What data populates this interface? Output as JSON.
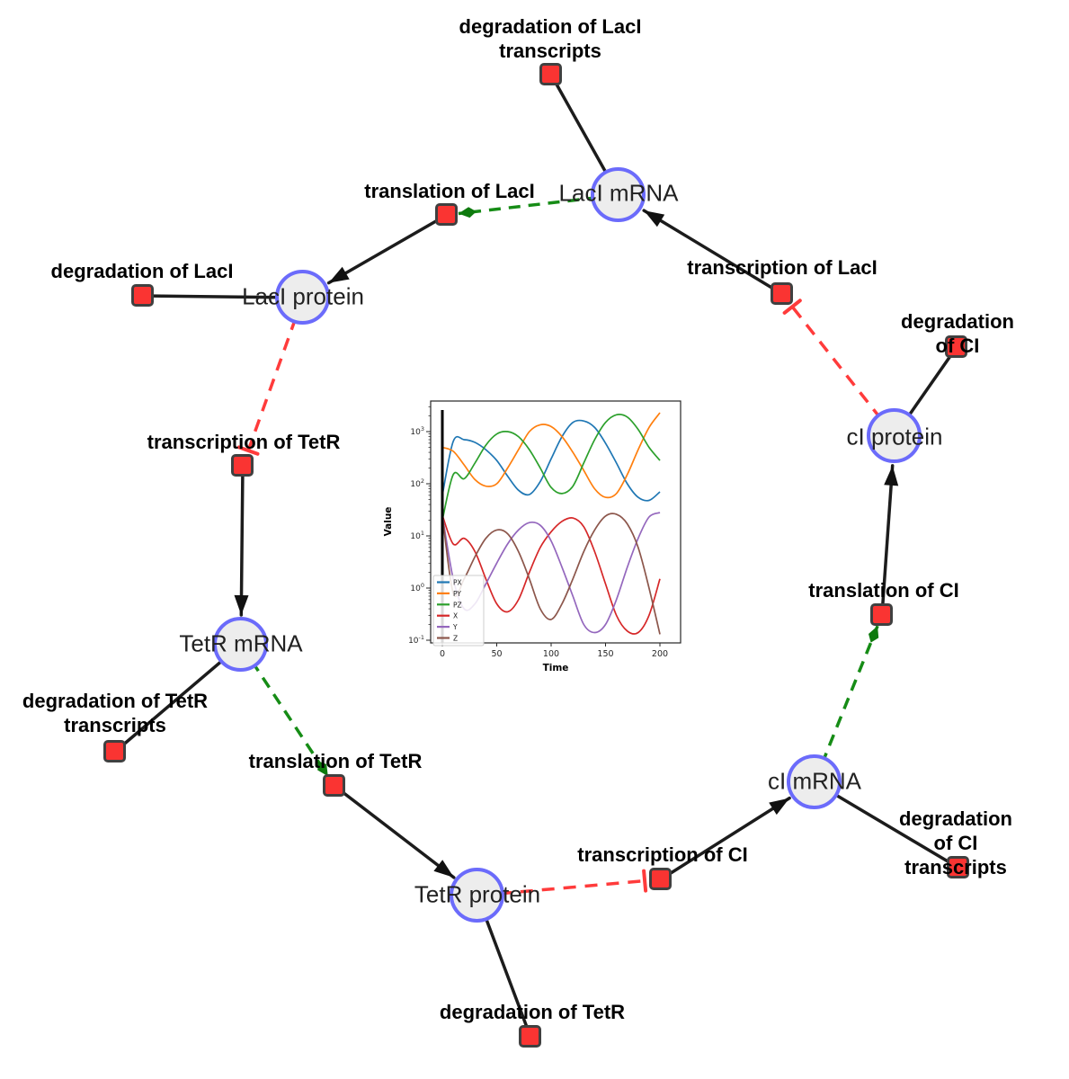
{
  "network": {
    "species": [
      {
        "id": "laci-mrna",
        "label": "LacI mRNA"
      },
      {
        "id": "laci-protein",
        "label": "LacI protein"
      },
      {
        "id": "tetr-mrna",
        "label": "TetR mRNA"
      },
      {
        "id": "tetr-protein",
        "label": "TetR protein"
      },
      {
        "id": "ci-mrna",
        "label": "cI mRNA"
      },
      {
        "id": "ci-protein",
        "label": "cI protein"
      }
    ],
    "reactions": [
      {
        "id": "deg-laci-transcripts",
        "label": "degradation of LacI\ntranscripts"
      },
      {
        "id": "translation-laci",
        "label": "translation of LacI"
      },
      {
        "id": "transcription-laci",
        "label": "transcription of LacI"
      },
      {
        "id": "deg-laci",
        "label": "degradation of LacI"
      },
      {
        "id": "deg-ci",
        "label": "degradation of CI"
      },
      {
        "id": "transcription-tetr",
        "label": "transcription of TetR"
      },
      {
        "id": "deg-tetr-transcripts",
        "label": "degradation of TetR\ntranscripts"
      },
      {
        "id": "translation-tetr",
        "label": "translation of TetR"
      },
      {
        "id": "deg-tetr",
        "label": "degradation of TetR"
      },
      {
        "id": "transcription-ci",
        "label": "transcription of CI"
      },
      {
        "id": "deg-ci-transcripts",
        "label": "degradation of CI\ntranscripts"
      },
      {
        "id": "translation-ci",
        "label": "translation of CI"
      }
    ],
    "edges": [
      {
        "from": "LacI mRNA",
        "to": "degradation of LacI transcripts",
        "style": "solid-line"
      },
      {
        "from": "LacI mRNA",
        "to": "translation of LacI",
        "style": "green-dashed-arrow"
      },
      {
        "from": "translation of LacI",
        "to": "LacI protein",
        "style": "solid-arrow"
      },
      {
        "from": "transcription of LacI",
        "to": "LacI mRNA",
        "style": "solid-arrow"
      },
      {
        "from": "LacI protein",
        "to": "degradation of LacI",
        "style": "solid-line"
      },
      {
        "from": "LacI protein",
        "to": "transcription of TetR",
        "style": "red-dashed-inhibition"
      },
      {
        "from": "transcription of TetR",
        "to": "TetR mRNA",
        "style": "solid-arrow"
      },
      {
        "from": "TetR mRNA",
        "to": "degradation of TetR transcripts",
        "style": "solid-line"
      },
      {
        "from": "TetR mRNA",
        "to": "translation of TetR",
        "style": "green-dashed-arrow"
      },
      {
        "from": "translation of TetR",
        "to": "TetR protein",
        "style": "solid-arrow"
      },
      {
        "from": "TetR protein",
        "to": "degradation of TetR",
        "style": "solid-line"
      },
      {
        "from": "TetR protein",
        "to": "transcription of CI",
        "style": "red-dashed-inhibition"
      },
      {
        "from": "transcription of CI",
        "to": "cI mRNA",
        "style": "solid-arrow"
      },
      {
        "from": "cI mRNA",
        "to": "degradation of CI transcripts",
        "style": "solid-line"
      },
      {
        "from": "cI mRNA",
        "to": "translation of CI",
        "style": "green-dashed-arrow"
      },
      {
        "from": "translation of CI",
        "to": "cI protein",
        "style": "solid-arrow"
      },
      {
        "from": "cI protein",
        "to": "degradation of CI",
        "style": "solid-line"
      },
      {
        "from": "cI protein",
        "to": "transcription of LacI",
        "style": "red-dashed-inhibition"
      }
    ],
    "colors": {
      "species_fill": "#ededed",
      "species_border": "#6b6bfb",
      "reaction_fill": "#fa3432",
      "reaction_border": "#404040",
      "solid_edge": "#1c1c1c",
      "catalysis_edge": "#168c16",
      "inhibition_edge": "#ff3b3b"
    }
  },
  "chart_data": {
    "type": "line",
    "title": "",
    "xlabel": "Time",
    "ylabel": "Value",
    "y_scale": "log",
    "x_ticks": [
      0,
      50,
      100,
      150,
      200
    ],
    "y_tick_exponents": [
      3,
      2,
      1,
      0,
      -1
    ],
    "xlim": [
      -8,
      212
    ],
    "ylim_log10": [
      -1.05,
      3.6
    ],
    "legend_position": "lower left",
    "t0_marker_line": true,
    "x": [
      0,
      10,
      20,
      30,
      40,
      50,
      60,
      70,
      80,
      90,
      100,
      110,
      120,
      130,
      140,
      150,
      160,
      170,
      180,
      190,
      200
    ],
    "series": [
      {
        "name": "PX",
        "color": "#1f77b4",
        "values": [
          60,
          650,
          700,
          620,
          450,
          280,
          140,
          75,
          62,
          110,
          300,
          800,
          1500,
          1600,
          1200,
          600,
          250,
          100,
          55,
          48,
          70
        ]
      },
      {
        "name": "PY",
        "color": "#ff7f0e",
        "values": [
          500,
          420,
          230,
          120,
          90,
          100,
          200,
          450,
          1000,
          1350,
          1250,
          800,
          400,
          180,
          80,
          55,
          65,
          150,
          450,
          1200,
          2300
        ]
      },
      {
        "name": "PZ",
        "color": "#2ca02c",
        "values": [
          20,
          150,
          125,
          250,
          550,
          900,
          1000,
          800,
          450,
          200,
          85,
          65,
          90,
          250,
          700,
          1500,
          2100,
          1900,
          1100,
          500,
          280
        ]
      },
      {
        "name": "X",
        "color": "#d62728",
        "values": [
          25,
          7,
          9,
          5,
          1.5,
          0.5,
          0.35,
          0.6,
          2,
          6,
          12,
          19,
          22,
          15,
          5,
          1.2,
          0.3,
          0.15,
          0.14,
          0.3,
          1.5
        ]
      },
      {
        "name": "Y",
        "color": "#9467bd",
        "values": [
          25,
          1.5,
          0.4,
          0.5,
          1.2,
          3,
          7,
          13,
          18,
          16,
          8,
          2.5,
          0.7,
          0.2,
          0.14,
          0.2,
          0.6,
          2.5,
          9,
          23,
          28
        ]
      },
      {
        "name": "Z",
        "color": "#8c564b",
        "values": [
          25,
          0.8,
          1.5,
          4,
          9,
          13,
          11,
          5,
          1.5,
          0.4,
          0.25,
          0.5,
          1.5,
          5,
          13,
          24,
          26,
          17,
          6,
          1,
          0.13
        ]
      }
    ]
  }
}
